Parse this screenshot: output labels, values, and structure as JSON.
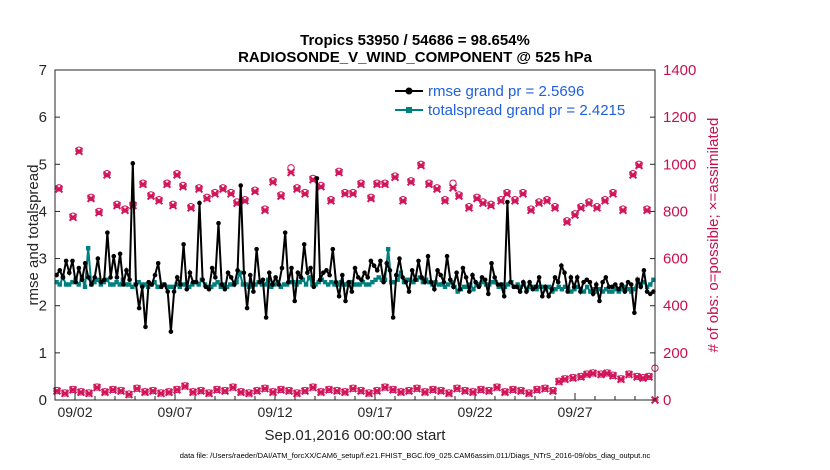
{
  "chart_data": {
    "type": "line",
    "title_line1": "Tropics 53950 / 54686 = 98.654%",
    "title_line2": "RADIOSONDE_V_WIND_COMPONENT @ 525 hPa",
    "xlabel": "Sep.01,2016 00:00:00 start",
    "ylabel_left": "rmse and totalspread",
    "ylabel_right": "# of obs: o=possible; ×=assimilated",
    "ylim_left": [
      0,
      7
    ],
    "ylim_right": [
      0,
      1400
    ],
    "yticks_left": [
      "0",
      "1",
      "2",
      "3",
      "4",
      "5",
      "6",
      "7"
    ],
    "yticks_right": [
      "0",
      "200",
      "400",
      "600",
      "800",
      "1000",
      "1200",
      "1400"
    ],
    "xlim": [
      0,
      30
    ],
    "xticks": [
      {
        "day": 1,
        "label": "09/02"
      },
      {
        "day": 6,
        "label": "09/07"
      },
      {
        "day": 11,
        "label": "09/12"
      },
      {
        "day": 16,
        "label": "09/17"
      },
      {
        "day": 21,
        "label": "09/22"
      },
      {
        "day": 26,
        "label": "09/27"
      }
    ],
    "legend": [
      {
        "name": "rmse grand pr = 2.5696",
        "color": "#000000"
      },
      {
        "name": "totalspread grand pr = 2.4215",
        "color": "#007f7f"
      }
    ],
    "rmse": [
      2.65,
      2.75,
      2.6,
      2.95,
      2.7,
      2.95,
      2.5,
      2.8,
      2.55,
      2.9,
      2.6,
      2.45,
      2.6,
      3.0,
      2.5,
      2.55,
      3.55,
      2.6,
      3.05,
      2.6,
      3.1,
      2.45,
      2.75,
      2.55,
      5.02,
      2.45,
      1.95,
      2.4,
      1.55,
      2.5,
      2.45,
      2.65,
      2.9,
      2.4,
      2.45,
      2.3,
      1.45,
      2.3,
      2.6,
      2.45,
      3.3,
      2.35,
      2.7,
      2.5,
      2.5,
      4.18,
      2.55,
      2.4,
      2.35,
      2.8,
      2.6,
      3.75,
      2.45,
      2.35,
      2.7,
      2.6,
      2.45,
      2.75,
      4.55,
      2.7,
      1.95,
      2.65,
      2.3,
      3.2,
      2.5,
      2.55,
      1.75,
      2.7,
      2.45,
      2.6,
      2.45,
      2.8,
      3.55,
      2.5,
      2.8,
      2.1,
      2.7,
      2.6,
      3.3,
      2.7,
      2.8,
      2.4,
      4.7,
      2.55,
      2.7,
      2.75,
      2.65,
      3.2,
      2.5,
      2.2,
      2.65,
      2.1,
      2.5,
      2.3,
      2.8,
      2.6,
      2.55,
      2.7,
      2.6,
      2.95,
      2.85,
      2.75,
      2.95,
      2.5,
      2.9,
      2.75,
      1.75,
      2.65,
      3.0,
      2.6,
      2.5,
      2.3,
      2.75,
      2.55,
      2.95,
      2.6,
      2.5,
      3.05,
      2.5,
      2.35,
      2.75,
      2.65,
      2.5,
      3.05,
      2.55,
      2.4,
      2.7,
      2.35,
      2.8,
      2.6,
      2.3,
      2.65,
      2.5,
      2.4,
      2.6,
      2.55,
      2.25,
      2.9,
      2.6,
      2.45,
      2.45,
      2.2,
      4.2,
      2.5,
      2.4,
      2.4,
      2.3,
      2.5,
      2.3,
      2.5,
      2.35,
      2.4,
      2.6,
      2.2,
      2.4,
      2.2,
      2.35,
      2.6,
      2.5,
      2.85,
      2.7,
      2.3,
      2.6,
      2.4,
      2.6,
      2.3,
      2.5,
      2.55,
      2.5,
      2.25,
      2.45,
      2.1,
      2.5,
      2.6,
      2.4,
      2.4,
      2.45,
      2.35,
      2.45,
      2.3,
      2.5,
      2.45,
      1.85,
      2.55,
      2.4,
      2.75,
      2.3,
      2.25,
      2.3
    ],
    "totalspread": [
      2.5,
      2.45,
      2.6,
      2.45,
      2.45,
      2.5,
      2.55,
      2.45,
      2.6,
      2.4,
      3.22,
      2.45,
      2.5,
      2.55,
      2.45,
      2.5,
      2.55,
      2.45,
      2.45,
      2.5,
      2.45,
      2.55,
      2.45,
      2.45,
      2.4,
      2.45,
      2.5,
      2.45,
      2.45,
      2.4,
      2.45,
      2.5,
      2.4,
      2.4,
      2.45,
      2.4,
      2.4,
      2.4,
      2.45,
      2.4,
      2.45,
      2.45,
      2.4,
      2.45,
      2.5,
      2.45,
      2.55,
      2.45,
      2.4,
      2.4,
      2.45,
      2.5,
      2.4,
      2.45,
      2.4,
      2.45,
      2.45,
      2.5,
      2.7,
      2.45,
      2.45,
      2.4,
      2.45,
      2.45,
      2.5,
      2.45,
      2.45,
      2.55,
      2.4,
      2.45,
      2.5,
      2.4,
      2.45,
      2.45,
      2.5,
      2.5,
      2.45,
      2.5,
      2.55,
      2.45,
      2.6,
      2.45,
      2.45,
      2.5,
      2.55,
      2.5,
      2.45,
      2.5,
      2.45,
      2.45,
      2.5,
      2.45,
      2.45,
      2.5,
      2.45,
      2.45,
      2.45,
      2.5,
      2.45,
      2.45,
      2.5,
      2.55,
      2.6,
      2.55,
      2.55,
      3.2,
      2.5,
      2.5,
      2.55,
      2.7,
      2.5,
      2.55,
      2.55,
      2.5,
      2.55,
      2.6,
      2.5,
      2.55,
      2.5,
      2.45,
      2.5,
      2.45,
      2.45,
      2.4,
      2.45,
      2.5,
      2.4,
      2.3,
      2.35,
      2.4,
      2.4,
      2.45,
      2.35,
      2.45,
      2.45,
      2.5,
      2.45,
      2.45,
      2.5,
      2.5,
      2.4,
      2.45,
      2.4,
      2.45,
      2.5,
      2.4,
      2.45,
      2.4,
      2.45,
      2.35,
      2.4,
      2.4,
      2.35,
      2.4,
      2.4,
      2.35,
      2.4,
      2.3,
      2.35,
      2.4,
      2.35,
      2.4,
      2.35,
      2.3,
      2.35,
      2.4,
      2.35,
      2.3,
      2.4,
      2.3,
      2.35,
      2.3,
      2.35,
      2.3,
      2.35,
      2.3,
      2.3,
      2.35,
      2.3,
      2.35,
      2.4,
      2.35,
      2.3,
      2.35,
      2.55,
      2.45,
      2.5,
      2.4,
      2.45,
      2.55
    ],
    "obs_possible": [
      [
        0.2,
        900
      ],
      [
        0.9,
        780
      ],
      [
        1.2,
        1060
      ],
      [
        1.8,
        860
      ],
      [
        2.2,
        800
      ],
      [
        2.6,
        960
      ],
      [
        3.1,
        830
      ],
      [
        3.5,
        810
      ],
      [
        3.9,
        830
      ],
      [
        4.4,
        920
      ],
      [
        4.8,
        870
      ],
      [
        5.2,
        850
      ],
      [
        5.6,
        920
      ],
      [
        5.9,
        830
      ],
      [
        6.1,
        960
      ],
      [
        6.4,
        910
      ],
      [
        6.8,
        820
      ],
      [
        7.2,
        900
      ],
      [
        7.6,
        860
      ],
      [
        8.0,
        880
      ],
      [
        8.4,
        900
      ],
      [
        8.8,
        880
      ],
      [
        9.1,
        840
      ],
      [
        9.5,
        850
      ],
      [
        10.0,
        890
      ],
      [
        10.5,
        810
      ],
      [
        10.9,
        930
      ],
      [
        11.3,
        870
      ],
      [
        11.8,
        985
      ],
      [
        12.1,
        900
      ],
      [
        12.5,
        880
      ],
      [
        12.9,
        940
      ],
      [
        13.3,
        910
      ],
      [
        13.8,
        850
      ],
      [
        14.2,
        970
      ],
      [
        14.5,
        880
      ],
      [
        14.9,
        880
      ],
      [
        15.3,
        920
      ],
      [
        15.8,
        860
      ],
      [
        16.1,
        920
      ],
      [
        16.5,
        920
      ],
      [
        17.0,
        950
      ],
      [
        17.4,
        850
      ],
      [
        17.8,
        930
      ],
      [
        18.3,
        1000
      ],
      [
        18.7,
        920
      ],
      [
        19.1,
        900
      ],
      [
        19.5,
        850
      ],
      [
        19.9,
        920
      ],
      [
        20.2,
        870
      ],
      [
        20.7,
        820
      ],
      [
        21.1,
        860
      ],
      [
        21.4,
        840
      ],
      [
        21.8,
        830
      ],
      [
        22.3,
        850
      ],
      [
        22.6,
        880
      ],
      [
        23.0,
        850
      ],
      [
        23.4,
        880
      ],
      [
        23.8,
        810
      ],
      [
        24.2,
        840
      ],
      [
        24.6,
        850
      ],
      [
        25.0,
        820
      ],
      [
        25.6,
        760
      ],
      [
        26.0,
        790
      ],
      [
        26.3,
        820
      ],
      [
        26.7,
        840
      ],
      [
        27.1,
        820
      ],
      [
        27.5,
        850
      ],
      [
        27.9,
        880
      ],
      [
        28.4,
        810
      ],
      [
        28.9,
        960
      ],
      [
        29.2,
        1000
      ],
      [
        29.6,
        810
      ]
    ],
    "obs_assimilated": [
      [
        0.2,
        895
      ],
      [
        0.9,
        775
      ],
      [
        1.2,
        1055
      ],
      [
        1.8,
        855
      ],
      [
        2.2,
        795
      ],
      [
        2.6,
        955
      ],
      [
        3.1,
        825
      ],
      [
        3.5,
        805
      ],
      [
        3.9,
        825
      ],
      [
        4.4,
        915
      ],
      [
        4.8,
        865
      ],
      [
        5.2,
        845
      ],
      [
        5.6,
        915
      ],
      [
        5.9,
        825
      ],
      [
        6.1,
        955
      ],
      [
        6.4,
        905
      ],
      [
        6.8,
        815
      ],
      [
        7.2,
        895
      ],
      [
        7.6,
        855
      ],
      [
        8.0,
        875
      ],
      [
        8.4,
        895
      ],
      [
        8.8,
        875
      ],
      [
        9.1,
        835
      ],
      [
        9.5,
        845
      ],
      [
        10.0,
        885
      ],
      [
        10.5,
        805
      ],
      [
        10.9,
        925
      ],
      [
        11.3,
        865
      ],
      [
        11.8,
        965
      ],
      [
        12.1,
        895
      ],
      [
        12.5,
        875
      ],
      [
        12.9,
        935
      ],
      [
        13.3,
        905
      ],
      [
        13.8,
        845
      ],
      [
        14.2,
        965
      ],
      [
        14.5,
        875
      ],
      [
        14.9,
        875
      ],
      [
        15.3,
        915
      ],
      [
        15.8,
        855
      ],
      [
        16.1,
        915
      ],
      [
        16.5,
        915
      ],
      [
        17.0,
        945
      ],
      [
        17.4,
        845
      ],
      [
        17.8,
        925
      ],
      [
        18.3,
        995
      ],
      [
        18.7,
        915
      ],
      [
        19.1,
        895
      ],
      [
        19.5,
        845
      ],
      [
        19.9,
        900
      ],
      [
        20.2,
        865
      ],
      [
        20.7,
        815
      ],
      [
        21.1,
        855
      ],
      [
        21.4,
        835
      ],
      [
        21.8,
        825
      ],
      [
        22.3,
        845
      ],
      [
        22.6,
        875
      ],
      [
        23.0,
        845
      ],
      [
        23.4,
        875
      ],
      [
        23.8,
        805
      ],
      [
        24.2,
        835
      ],
      [
        24.6,
        845
      ],
      [
        25.0,
        815
      ],
      [
        25.6,
        755
      ],
      [
        26.0,
        785
      ],
      [
        26.3,
        815
      ],
      [
        26.7,
        835
      ],
      [
        27.1,
        815
      ],
      [
        27.5,
        845
      ],
      [
        27.9,
        875
      ],
      [
        28.4,
        805
      ],
      [
        28.9,
        955
      ],
      [
        29.2,
        995
      ],
      [
        29.6,
        805
      ]
    ],
    "obs_low_possible": [
      [
        0.1,
        40
      ],
      [
        0.5,
        30
      ],
      [
        0.9,
        45
      ],
      [
        1.3,
        35
      ],
      [
        1.7,
        30
      ],
      [
        2.1,
        55
      ],
      [
        2.5,
        35
      ],
      [
        2.9,
        45
      ],
      [
        3.3,
        40
      ],
      [
        3.7,
        25
      ],
      [
        4.1,
        50
      ],
      [
        4.5,
        35
      ],
      [
        4.9,
        40
      ],
      [
        5.3,
        30
      ],
      [
        5.7,
        35
      ],
      [
        6.1,
        45
      ],
      [
        6.5,
        60
      ],
      [
        6.9,
        35
      ],
      [
        7.3,
        40
      ],
      [
        7.7,
        30
      ],
      [
        8.1,
        45
      ],
      [
        8.5,
        40
      ],
      [
        8.9,
        55
      ],
      [
        9.3,
        35
      ],
      [
        9.7,
        30
      ],
      [
        10.1,
        40
      ],
      [
        10.5,
        50
      ],
      [
        10.9,
        35
      ],
      [
        11.3,
        45
      ],
      [
        11.7,
        40
      ],
      [
        12.1,
        30
      ],
      [
        12.5,
        40
      ],
      [
        12.9,
        55
      ],
      [
        13.3,
        35
      ],
      [
        13.7,
        45
      ],
      [
        14.1,
        40
      ],
      [
        14.5,
        35
      ],
      [
        14.9,
        50
      ],
      [
        15.3,
        40
      ],
      [
        15.7,
        30
      ],
      [
        16.1,
        40
      ],
      [
        16.5,
        55
      ],
      [
        16.9,
        45
      ],
      [
        17.3,
        35
      ],
      [
        17.7,
        40
      ],
      [
        18.1,
        50
      ],
      [
        18.5,
        35
      ],
      [
        18.9,
        45
      ],
      [
        19.3,
        40
      ],
      [
        19.7,
        30
      ],
      [
        20.1,
        50
      ],
      [
        20.5,
        40
      ],
      [
        20.9,
        35
      ],
      [
        21.3,
        45
      ],
      [
        21.7,
        40
      ],
      [
        22.1,
        55
      ],
      [
        22.5,
        35
      ],
      [
        22.9,
        45
      ],
      [
        23.3,
        40
      ],
      [
        23.7,
        30
      ],
      [
        24.1,
        45
      ],
      [
        24.5,
        50
      ],
      [
        24.9,
        40
      ],
      [
        25.2,
        80
      ],
      [
        25.5,
        90
      ],
      [
        25.9,
        95
      ],
      [
        26.3,
        100
      ],
      [
        26.6,
        110
      ],
      [
        26.9,
        115
      ],
      [
        27.3,
        110
      ],
      [
        27.6,
        115
      ],
      [
        27.9,
        105
      ],
      [
        28.3,
        90
      ],
      [
        28.7,
        110
      ],
      [
        29.1,
        100
      ],
      [
        29.4,
        95
      ],
      [
        29.7,
        100
      ],
      [
        30.0,
        135
      ]
    ],
    "obs_low_assimilated": [
      [
        0.1,
        38
      ],
      [
        0.5,
        28
      ],
      [
        0.9,
        43
      ],
      [
        1.3,
        33
      ],
      [
        1.7,
        28
      ],
      [
        2.1,
        53
      ],
      [
        2.5,
        33
      ],
      [
        2.9,
        43
      ],
      [
        3.3,
        38
      ],
      [
        3.7,
        23
      ],
      [
        4.1,
        48
      ],
      [
        4.5,
        33
      ],
      [
        4.9,
        38
      ],
      [
        5.3,
        28
      ],
      [
        5.7,
        33
      ],
      [
        6.1,
        43
      ],
      [
        6.5,
        58
      ],
      [
        6.9,
        33
      ],
      [
        7.3,
        38
      ],
      [
        7.7,
        28
      ],
      [
        8.1,
        43
      ],
      [
        8.5,
        38
      ],
      [
        8.9,
        53
      ],
      [
        9.3,
        33
      ],
      [
        9.7,
        28
      ],
      [
        10.1,
        38
      ],
      [
        10.5,
        48
      ],
      [
        10.9,
        33
      ],
      [
        11.3,
        43
      ],
      [
        11.7,
        38
      ],
      [
        12.1,
        28
      ],
      [
        12.5,
        38
      ],
      [
        12.9,
        53
      ],
      [
        13.3,
        33
      ],
      [
        13.7,
        43
      ],
      [
        14.1,
        38
      ],
      [
        14.5,
        33
      ],
      [
        14.9,
        48
      ],
      [
        15.3,
        38
      ],
      [
        15.7,
        28
      ],
      [
        16.1,
        38
      ],
      [
        16.5,
        53
      ],
      [
        16.9,
        43
      ],
      [
        17.3,
        33
      ],
      [
        17.7,
        38
      ],
      [
        18.1,
        48
      ],
      [
        18.5,
        33
      ],
      [
        18.9,
        43
      ],
      [
        19.3,
        38
      ],
      [
        19.7,
        28
      ],
      [
        20.1,
        48
      ],
      [
        20.5,
        38
      ],
      [
        20.9,
        33
      ],
      [
        21.3,
        43
      ],
      [
        21.7,
        38
      ],
      [
        22.1,
        53
      ],
      [
        22.5,
        33
      ],
      [
        22.9,
        43
      ],
      [
        23.3,
        38
      ],
      [
        23.7,
        28
      ],
      [
        24.1,
        43
      ],
      [
        24.5,
        48
      ],
      [
        24.9,
        38
      ],
      [
        25.2,
        78
      ],
      [
        25.5,
        88
      ],
      [
        25.9,
        93
      ],
      [
        26.3,
        98
      ],
      [
        26.6,
        108
      ],
      [
        26.9,
        113
      ],
      [
        27.3,
        108
      ],
      [
        27.6,
        113
      ],
      [
        27.9,
        103
      ],
      [
        28.3,
        88
      ],
      [
        28.7,
        108
      ],
      [
        29.1,
        98
      ],
      [
        29.4,
        93
      ],
      [
        29.7,
        98
      ],
      [
        30.0,
        0
      ]
    ]
  },
  "footnote": "data file: /Users/raeder/DAI/ATM_forcXX/CAM6_setup/f.e21.FHIST_BGC.f09_025.CAM6assim.011/Diags_NTrS_2016-09/obs_diag_output.nc",
  "colors": {
    "rmse": "#000000",
    "spread": "#007f7f",
    "obs": "#d1155a",
    "right_axis": "#c8104f",
    "legend_text": "#1f5fe0"
  }
}
